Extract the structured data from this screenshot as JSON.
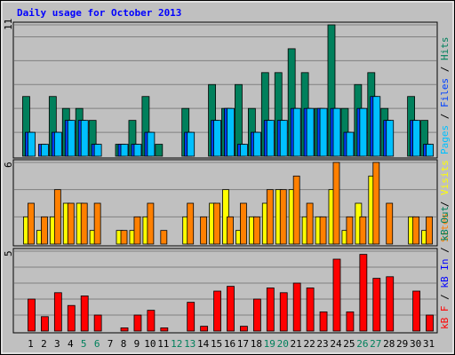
{
  "title": "Daily usage for October 2013",
  "chart_data": [
    {
      "type": "bar",
      "ylim": [
        0,
        11
      ],
      "yticks": [
        11
      ],
      "gridlines": [
        2,
        4,
        6,
        8,
        10
      ],
      "legend_separator": " / ",
      "series": [
        {
          "name": "Hits",
          "color": "#00805c",
          "values": [
            5,
            0,
            5,
            4,
            4,
            3,
            0,
            1,
            3,
            5,
            1,
            0,
            4,
            0,
            6,
            4,
            6,
            4,
            7,
            7,
            9,
            7,
            4,
            11,
            4,
            6,
            7,
            4,
            0,
            5,
            3
          ]
        },
        {
          "name": "Files",
          "color": "#0040ff",
          "values": [
            2,
            1,
            2,
            3,
            3,
            1,
            0,
            1,
            1,
            2,
            0,
            0,
            2,
            0,
            3,
            4,
            1,
            2,
            3,
            3,
            4,
            4,
            4,
            4,
            2,
            4,
            5,
            3,
            0,
            3,
            1
          ]
        },
        {
          "name": "Pages",
          "color": "#00c0ff",
          "values": [
            2,
            1,
            2,
            3,
            3,
            1,
            0,
            1,
            1,
            2,
            0,
            0,
            2,
            0,
            3,
            4,
            1,
            2,
            3,
            3,
            4,
            4,
            4,
            4,
            2,
            4,
            5,
            3,
            0,
            3,
            1
          ]
        }
      ]
    },
    {
      "type": "bar",
      "ylim": [
        0,
        6
      ],
      "yticks": [
        6
      ],
      "gridlines": [
        2,
        4
      ],
      "legend_separator": " / ",
      "series": [
        {
          "name": "Visits",
          "color": "#ffff00",
          "values": [
            2,
            1,
            2,
            3,
            3,
            1,
            0,
            1,
            1,
            2,
            0,
            0,
            2,
            0,
            3,
            4,
            1,
            2,
            3,
            4,
            4,
            2,
            2,
            4,
            1,
            3,
            5,
            0,
            0,
            2,
            1
          ]
        },
        {
          "name": "Sites",
          "color": "#ff8000",
          "values": [
            3,
            2,
            4,
            3,
            3,
            3,
            0,
            1,
            2,
            3,
            1,
            0,
            3,
            2,
            3,
            2,
            3,
            2,
            4,
            4,
            5,
            3,
            2,
            6,
            2,
            2,
            6,
            3,
            0,
            2,
            2
          ]
        }
      ]
    },
    {
      "type": "bar",
      "ylim": [
        0,
        5
      ],
      "yticks": [
        5
      ],
      "gridlines": [
        1,
        2,
        3,
        4
      ],
      "legend_separator": " / ",
      "categories": [
        "1",
        "2",
        "3",
        "4",
        "5",
        "6",
        "7",
        "8",
        "9",
        "10",
        "11",
        "12",
        "13",
        "14",
        "15",
        "16",
        "17",
        "18",
        "19",
        "20",
        "21",
        "22",
        "23",
        "24",
        "25",
        "26",
        "27",
        "28",
        "29",
        "30",
        "31"
      ],
      "category_colors": [
        "#000000",
        "#000000",
        "#000000",
        "#000000",
        "#00805c",
        "#00805c",
        "#000000",
        "#000000",
        "#000000",
        "#000000",
        "#000000",
        "#00805c",
        "#00805c",
        "#000000",
        "#000000",
        "#000000",
        "#000000",
        "#000000",
        "#00805c",
        "#00805c",
        "#000000",
        "#000000",
        "#000000",
        "#000000",
        "#000000",
        "#00805c",
        "#00805c",
        "#000000",
        "#000000",
        "#000000",
        "#000000"
      ],
      "series": [
        {
          "name": "kB Out",
          "color": "#00805c",
          "values": [
            0,
            0,
            0,
            0,
            0,
            0,
            0,
            0,
            0,
            0,
            0,
            0,
            0,
            0,
            0,
            0,
            0,
            0,
            0,
            0,
            0,
            0,
            0,
            0,
            0,
            0,
            0,
            0,
            0,
            0,
            0
          ]
        },
        {
          "name": "kB In",
          "color": "#0000ff",
          "values": [
            0,
            0,
            0,
            0,
            0,
            0,
            0,
            0,
            0,
            0,
            0,
            0,
            0,
            0,
            0,
            0,
            0,
            0,
            0,
            0,
            0,
            0,
            0,
            0,
            0,
            0,
            0,
            0,
            0,
            0,
            0
          ]
        },
        {
          "name": "kB F",
          "color": "#ff0000",
          "values": [
            2.0,
            0.9,
            2.4,
            1.6,
            2.2,
            1.0,
            0,
            0.2,
            1.0,
            1.3,
            0.2,
            0,
            1.8,
            0.3,
            2.5,
            2.8,
            0.3,
            2.0,
            2.7,
            2.4,
            3.0,
            2.7,
            1.2,
            4.5,
            1.2,
            4.8,
            3.3,
            3.4,
            0,
            2.5,
            1.0
          ]
        }
      ]
    }
  ]
}
